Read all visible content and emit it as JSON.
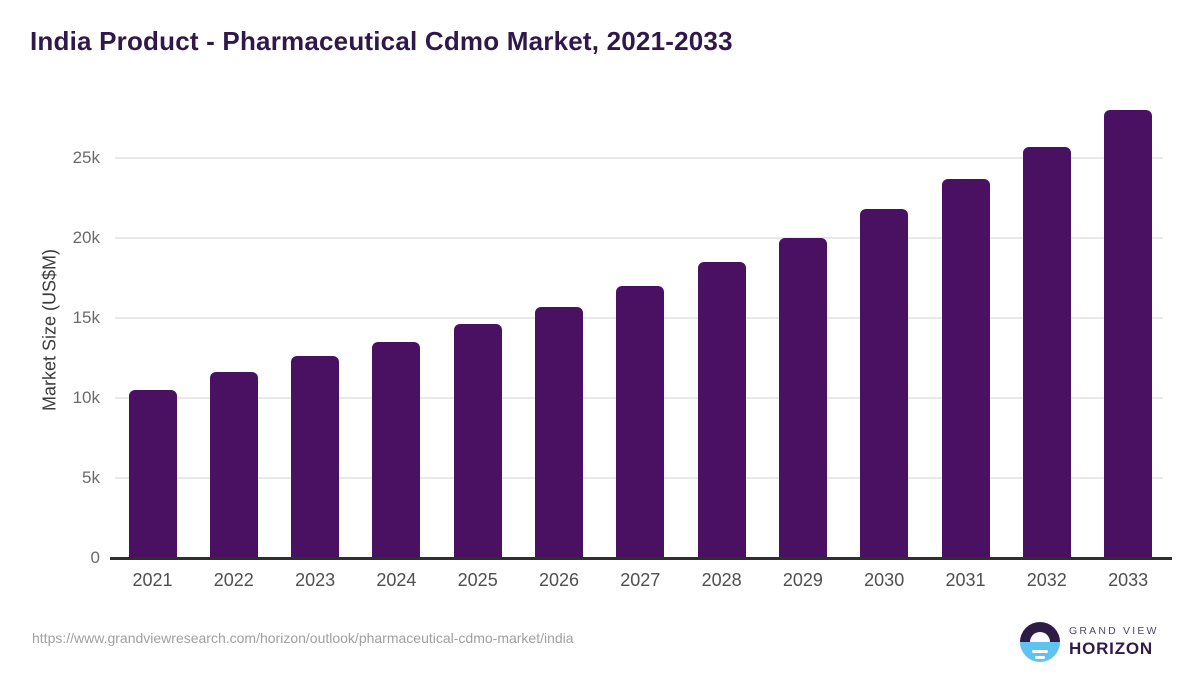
{
  "header": {
    "title": "India Product - Pharmaceutical Cdmo Market, 2021-2033"
  },
  "chart_data": {
    "type": "bar",
    "title": "India Product - Pharmaceutical Cdmo Market, 2021-2033",
    "categories": [
      "2021",
      "2022",
      "2023",
      "2024",
      "2025",
      "2026",
      "2027",
      "2028",
      "2029",
      "2030",
      "2031",
      "2032",
      "2033"
    ],
    "values": [
      10500,
      11600,
      12600,
      13500,
      14600,
      15700,
      17000,
      18500,
      20000,
      21800,
      23700,
      25700,
      28000
    ],
    "xlabel": "",
    "ylabel": "Market Size (US$M)",
    "ylim": [
      0,
      28000
    ],
    "yticks": [
      {
        "value": 0,
        "label": "0"
      },
      {
        "value": 5000,
        "label": "5k"
      },
      {
        "value": 10000,
        "label": "10k"
      },
      {
        "value": 15000,
        "label": "15k"
      },
      {
        "value": 20000,
        "label": "20k"
      },
      {
        "value": 25000,
        "label": "25k"
      }
    ],
    "grid": true,
    "legend": false,
    "bar_color": "#4a1162"
  },
  "footer": {
    "source_url": "https://www.grandviewresearch.com/horizon/outlook/pharmaceutical-cdmo-market/india",
    "brand": {
      "name_top": "GRAND VIEW",
      "name_bottom": "HORIZON"
    }
  },
  "colors": {
    "title_purple": "#31184a",
    "bar_purple": "#4a1162",
    "axis_dark": "#2f2f2f",
    "grid_gray": "#e9e9e9",
    "ytick_gray": "#6b6b6b",
    "xtick_gray": "#4f4f4f",
    "url_gray": "#a0a0a0",
    "logo_dark": "#2e1b46",
    "logo_blue": "#5ec3ef"
  }
}
